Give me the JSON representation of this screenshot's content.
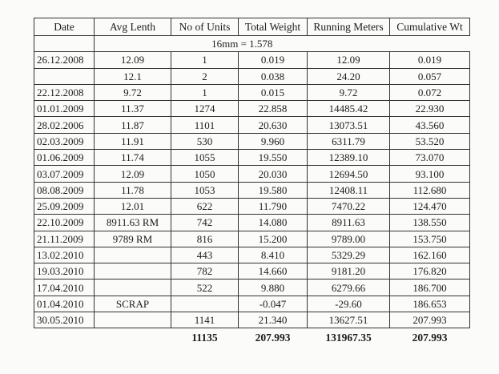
{
  "headers": [
    "Date",
    "Avg Lenth",
    "No of Units",
    "Total Weight",
    "Running Meters",
    "Cumulative Wt"
  ],
  "section_label": "16mm = 1.578",
  "rows": [
    {
      "date": "26.12.2008",
      "avg": "12.09",
      "units": "1",
      "weight": "0.019",
      "meters": "12.09",
      "cum": "0.019"
    },
    {
      "date": "",
      "avg": "12.1",
      "units": "2",
      "weight": "0.038",
      "meters": "24.20",
      "cum": "0.057"
    },
    {
      "date": "22.12.2008",
      "avg": "9.72",
      "units": "1",
      "weight": "0.015",
      "meters": "9.72",
      "cum": "0.072"
    },
    {
      "date": "01.01.2009",
      "avg": "11.37",
      "units": "1274",
      "weight": "22.858",
      "meters": "14485.42",
      "cum": "22.930"
    },
    {
      "date": "28.02.2006",
      "avg": "11.87",
      "units": "1101",
      "weight": "20.630",
      "meters": "13073.51",
      "cum": "43.560"
    },
    {
      "date": "02.03.2009",
      "avg": "11.91",
      "units": "530",
      "weight": "9.960",
      "meters": "6311.79",
      "cum": "53.520"
    },
    {
      "date": "01.06.2009",
      "avg": "11.74",
      "units": "1055",
      "weight": "19.550",
      "meters": "12389.10",
      "cum": "73.070"
    },
    {
      "date": "03.07.2009",
      "avg": "12.09",
      "units": "1050",
      "weight": "20.030",
      "meters": "12694.50",
      "cum": "93.100"
    },
    {
      "date": "08.08.2009",
      "avg": "11.78",
      "units": "1053",
      "weight": "19.580",
      "meters": "12408.11",
      "cum": "112.680"
    },
    {
      "date": "25.09.2009",
      "avg": "12.01",
      "units": "622",
      "weight": "11.790",
      "meters": "7470.22",
      "cum": "124.470"
    },
    {
      "date": "22.10.2009",
      "avg": "8911.63 RM",
      "units": "742",
      "weight": "14.080",
      "meters": "8911.63",
      "cum": "138.550"
    },
    {
      "date": "21.11.2009",
      "avg": "9789 RM",
      "units": "816",
      "weight": "15.200",
      "meters": "9789.00",
      "cum": "153.750"
    },
    {
      "date": "13.02.2010",
      "avg": "",
      "units": "443",
      "weight": "8.410",
      "meters": "5329.29",
      "cum": "162.160"
    },
    {
      "date": "19.03.2010",
      "avg": "",
      "units": "782",
      "weight": "14.660",
      "meters": "9181.20",
      "cum": "176.820"
    },
    {
      "date": "17.04.2010",
      "avg": "",
      "units": "522",
      "weight": "9.880",
      "meters": "6279.66",
      "cum": "186.700"
    },
    {
      "date": "01.04.2010",
      "avg": "SCRAP",
      "units": "",
      "weight": "-0.047",
      "meters": "-29.60",
      "cum": "186.653"
    },
    {
      "date": "30.05.2010",
      "avg": "",
      "units": "1141",
      "weight": "21.340",
      "meters": "13627.51",
      "cum": "207.993"
    }
  ],
  "totals": {
    "units": "11135",
    "weight": "207.993",
    "meters": "131967.35",
    "cum": "207.993"
  }
}
